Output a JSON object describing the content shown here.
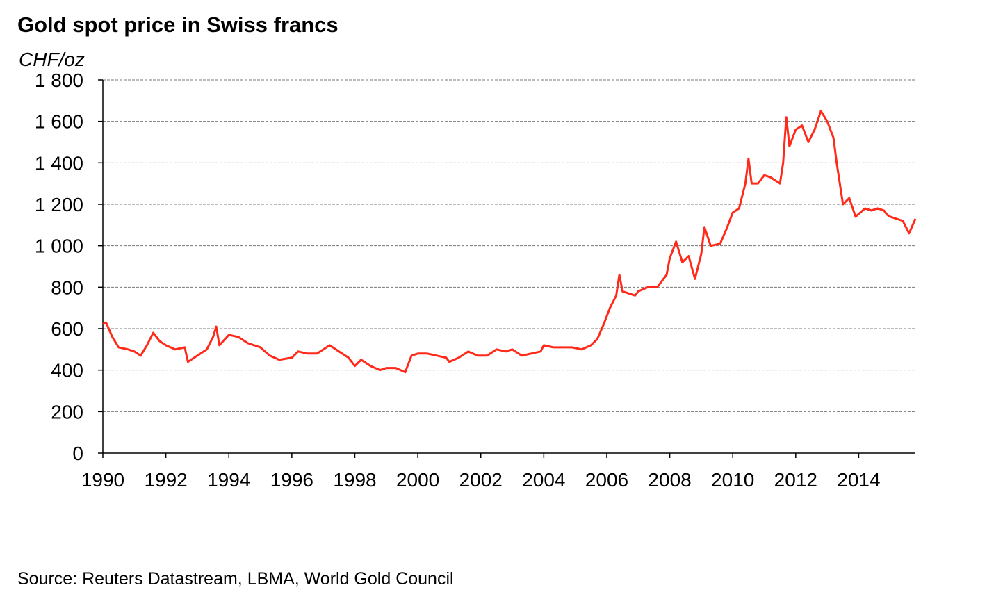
{
  "chart_data": {
    "type": "line",
    "title": "Gold spot price in Swiss francs",
    "y_label": "CHF/oz",
    "source": "Source: Reuters Datastream, LBMA, World Gold Council",
    "grid": true,
    "xlim": [
      1990,
      2015.8
    ],
    "xticks": [
      1990,
      1992,
      1994,
      1996,
      1998,
      2000,
      2002,
      2004,
      2006,
      2008,
      2010,
      2012,
      2014
    ],
    "ylim": [
      0,
      1800
    ],
    "yticks": [
      0,
      200,
      400,
      600,
      800,
      {
        "value": 1000,
        "label": "1 000"
      },
      {
        "value": 1200,
        "label": "1 200"
      },
      {
        "value": 1400,
        "label": "1 400"
      },
      {
        "value": 1600,
        "label": "1 600"
      },
      {
        "value": 1800,
        "label": "1 800"
      }
    ],
    "x": [
      1990.0,
      1990.1,
      1990.3,
      1990.5,
      1990.8,
      1991.0,
      1991.2,
      1991.4,
      1991.6,
      1991.8,
      1992.0,
      1992.3,
      1992.6,
      1992.7,
      1993.0,
      1993.3,
      1993.5,
      1993.6,
      1993.7,
      1994.0,
      1994.3,
      1994.6,
      1995.0,
      1995.3,
      1995.6,
      1996.0,
      1996.2,
      1996.5,
      1996.8,
      1997.0,
      1997.2,
      1997.5,
      1997.8,
      1998.0,
      1998.2,
      1998.5,
      1998.8,
      1999.0,
      1999.3,
      1999.6,
      1999.8,
      2000.0,
      2000.3,
      2000.6,
      2000.9,
      2001.0,
      2001.3,
      2001.6,
      2001.9,
      2002.2,
      2002.5,
      2002.8,
      2003.0,
      2003.3,
      2003.6,
      2003.9,
      2004.0,
      2004.3,
      2004.6,
      2004.9,
      2005.2,
      2005.5,
      2005.7,
      2005.9,
      2006.1,
      2006.3,
      2006.4,
      2006.5,
      2006.7,
      2006.9,
      2007.0,
      2007.3,
      2007.6,
      2007.9,
      2008.0,
      2008.2,
      2008.4,
      2008.6,
      2008.8,
      2009.0,
      2009.1,
      2009.3,
      2009.6,
      2009.8,
      2010.0,
      2010.2,
      2010.4,
      2010.5,
      2010.6,
      2010.8,
      2011.0,
      2011.2,
      2011.5,
      2011.6,
      2011.7,
      2011.8,
      2012.0,
      2012.2,
      2012.4,
      2012.6,
      2012.8,
      2013.0,
      2013.2,
      2013.3,
      2013.5,
      2013.7,
      2013.9,
      2014.2,
      2014.4,
      2014.6,
      2014.8,
      2014.9,
      2015.0,
      2015.2,
      2015.4,
      2015.6,
      2015.8
    ],
    "series": [
      {
        "color": "#ff2a1a",
        "values": [
          620,
          630,
          560,
          510,
          500,
          490,
          470,
          520,
          580,
          540,
          520,
          500,
          510,
          440,
          470,
          500,
          560,
          610,
          520,
          570,
          560,
          530,
          510,
          470,
          450,
          460,
          490,
          480,
          480,
          500,
          520,
          490,
          460,
          420,
          450,
          420,
          400,
          410,
          410,
          390,
          470,
          480,
          480,
          470,
          460,
          440,
          460,
          490,
          470,
          470,
          500,
          490,
          500,
          470,
          480,
          490,
          520,
          510,
          510,
          510,
          500,
          520,
          550,
          620,
          700,
          760,
          860,
          780,
          770,
          760,
          780,
          800,
          800,
          860,
          940,
          1020,
          920,
          950,
          840,
          960,
          1090,
          1000,
          1010,
          1080,
          1160,
          1180,
          1300,
          1420,
          1300,
          1300,
          1340,
          1330,
          1300,
          1400,
          1620,
          1480,
          1560,
          1580,
          1500,
          1560,
          1650,
          1600,
          1520,
          1400,
          1200,
          1230,
          1140,
          1180,
          1170,
          1180,
          1170,
          1150,
          1140,
          1130,
          1120,
          1060,
          1130
        ]
      }
    ]
  }
}
